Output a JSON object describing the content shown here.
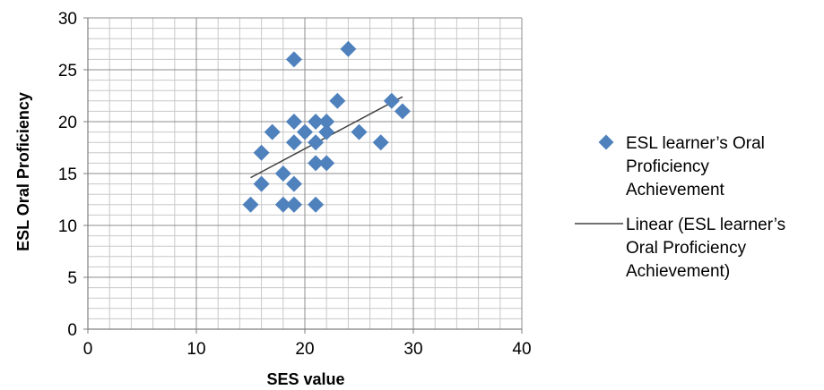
{
  "chart_data": {
    "type": "scatter",
    "xlabel": "SES value",
    "ylabel": "ESL Oral Proficiency",
    "xlim": [
      0,
      40
    ],
    "ylim": [
      0,
      30
    ],
    "x_ticks": [
      "0",
      "10",
      "20",
      "30",
      "40"
    ],
    "y_ticks": [
      "0",
      "5",
      "10",
      "15",
      "20",
      "25",
      "30"
    ],
    "grid": true,
    "legend_position": "right",
    "series": [
      {
        "name": "ESL learner’s Oral Proficiency Achievement",
        "legend_lines": [
          "ESL learner’s Oral",
          "Proficiency",
          "Achievement"
        ],
        "color": "#4F81BD",
        "marker": "diamond",
        "x": [
          15,
          16,
          16,
          17,
          18,
          18,
          19,
          19,
          19,
          19,
          19,
          19,
          20,
          21,
          21,
          21,
          21,
          22,
          22,
          22,
          23,
          24,
          25,
          27,
          28,
          29
        ],
        "y": [
          12,
          17,
          14,
          19,
          15,
          12,
          26,
          20,
          18,
          14,
          12,
          12,
          19,
          20,
          18,
          16,
          12,
          20,
          19,
          16,
          22,
          27,
          19,
          18,
          22,
          21
        ]
      },
      {
        "name": "Linear (ESL learner’s Oral Proficiency Achievement)",
        "legend_lines": [
          "Linear (ESL learner’s",
          "Oral Proficiency",
          "Achievement)"
        ],
        "color": "#404040",
        "type": "trendline",
        "x": [
          15,
          29
        ],
        "y": [
          14.6,
          22.4
        ]
      }
    ]
  }
}
